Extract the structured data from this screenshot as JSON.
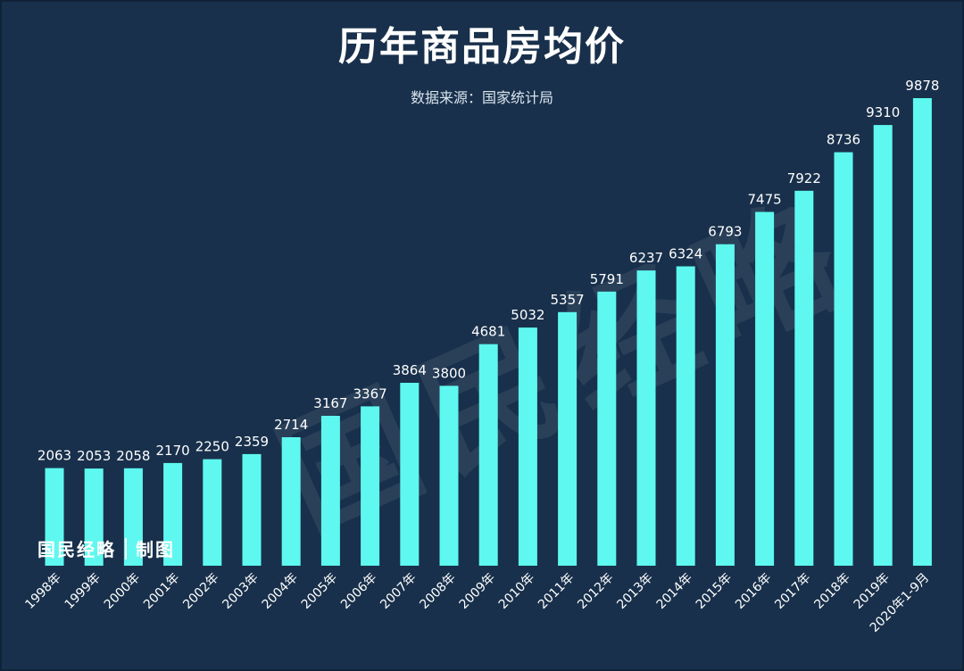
{
  "title": "历年商品房均价",
  "subtitle": "数据来源：国家统计局",
  "logo": {
    "brand": "国民经略",
    "suffix": "制图"
  },
  "watermark": "国民经略",
  "colors": {
    "background": "#18304b",
    "bar": "#5ef8f0",
    "text": "#ffffff"
  },
  "chart_data": {
    "type": "bar",
    "title": "历年商品房均价",
    "xlabel": "",
    "ylabel": "",
    "grid": false,
    "categories": [
      "1998年",
      "1999年",
      "2000年",
      "2001年",
      "2002年",
      "2003年",
      "2004年",
      "2005年",
      "2006年",
      "2007年",
      "2008年",
      "2009年",
      "2010年",
      "2011年",
      "2012年",
      "2013年",
      "2014年",
      "2015年",
      "2016年",
      "2017年",
      "2018年",
      "2019年",
      "2020年1-9月"
    ],
    "values": [
      2063,
      2053,
      2058,
      2170,
      2250,
      2359,
      2714,
      3167,
      3367,
      3864,
      3800,
      4681,
      5032,
      5357,
      5791,
      6237,
      6324,
      6793,
      7475,
      7922,
      8736,
      9310,
      9878
    ],
    "data_labels": true
  }
}
